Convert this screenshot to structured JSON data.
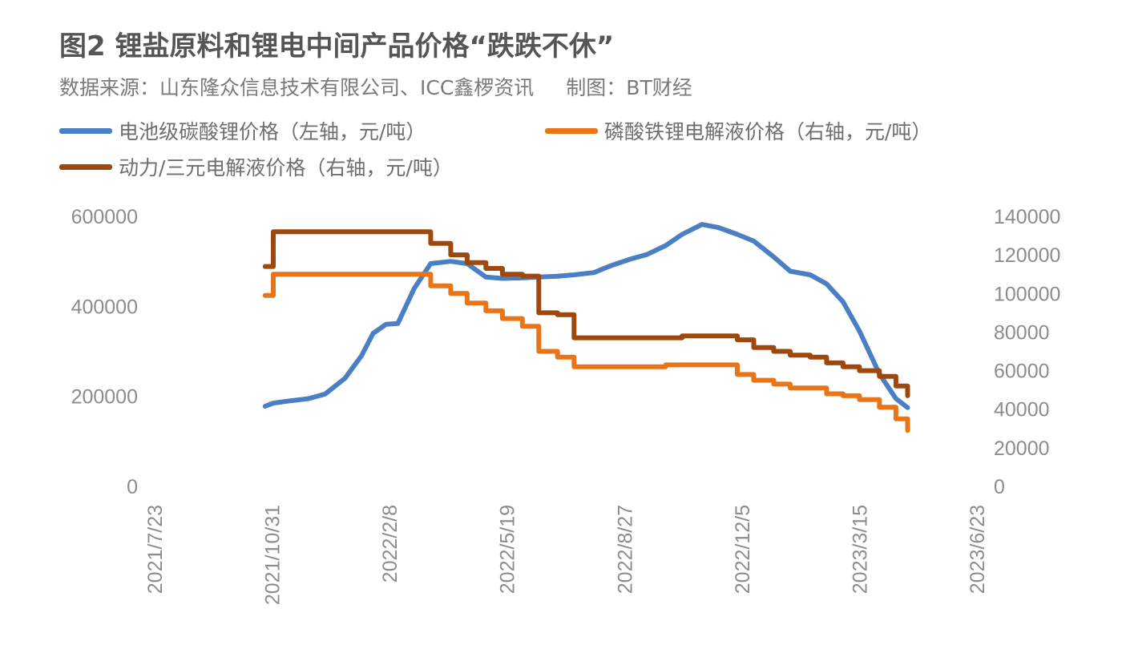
{
  "header": {
    "title": "图2 锂盐原料和锂电中间产品价格“跌跌不休”",
    "source": "数据来源：山东隆众信息技术有限公司、ICC鑫椤资讯",
    "maker": "制图：BT财经"
  },
  "legend": [
    {
      "label": "电池级碳酸锂价格（左轴，元/吨）",
      "color": "#4a7fc4"
    },
    {
      "label": "磷酸铁锂电解液价格（右轴，元/吨）",
      "color": "#e87619"
    },
    {
      "label": "动力/三元电解液价格（右轴，元/吨）",
      "color": "#9e480e"
    }
  ],
  "axes": {
    "left_ticks": [
      "600000",
      "400000",
      "200000",
      "0"
    ],
    "right_ticks": [
      "140000",
      "120000",
      "100000",
      "80000",
      "60000",
      "40000",
      "20000",
      "0"
    ],
    "x_ticks": [
      "2021/7/23",
      "2021/10/31",
      "2022/2/8",
      "2022/5/19",
      "2022/8/27",
      "2022/12/5",
      "2023/3/15",
      "2023/6/23"
    ]
  },
  "chart_data": {
    "type": "line",
    "title": "图2 锂盐原料和锂电中间产品价格“跌跌不休”",
    "subtitle": "数据来源：山东隆众信息技术有限公司、ICC鑫椤资讯  制图：BT财经",
    "xlabel": "",
    "ylabel_left": "元/吨",
    "ylabel_right": "元/吨",
    "ylim_left": [
      0,
      600000
    ],
    "ylim_right": [
      0,
      140000
    ],
    "x_tick_labels": [
      "2021/7/23",
      "2021/10/31",
      "2022/2/8",
      "2022/5/19",
      "2022/8/27",
      "2022/12/5",
      "2023/3/15",
      "2023/6/23"
    ],
    "grid": false,
    "legend_position": "top",
    "x": [
      "2021/10/25",
      "2021/11/1",
      "2021/11/15",
      "2021/12/1",
      "2021/12/15",
      "2022/1/1",
      "2022/1/15",
      "2022/1/25",
      "2022/2/5",
      "2022/2/15",
      "2022/3/1",
      "2022/3/15",
      "2022/4/1",
      "2022/4/15",
      "2022/5/1",
      "2022/5/15",
      "2022/6/1",
      "2022/6/15",
      "2022/7/1",
      "2022/7/15",
      "2022/8/1",
      "2022/8/15",
      "2022/9/1",
      "2022/9/15",
      "2022/10/1",
      "2022/10/15",
      "2022/11/1",
      "2022/11/15",
      "2022/12/1",
      "2022/12/15",
      "2023/1/1",
      "2023/1/15",
      "2023/2/1",
      "2023/2/15",
      "2023/3/1",
      "2023/3/15",
      "2023/4/1",
      "2023/4/15",
      "2023/4/25"
    ],
    "series": [
      {
        "name": "电池级碳酸锂价格（左轴，元/吨）",
        "axis": "left",
        "color": "#4a7fc4",
        "values": [
          178000,
          185000,
          190000,
          195000,
          205000,
          240000,
          290000,
          340000,
          360000,
          362000,
          440000,
          495000,
          500000,
          495000,
          465000,
          462000,
          463000,
          465000,
          467000,
          470000,
          475000,
          490000,
          505000,
          515000,
          535000,
          560000,
          582000,
          575000,
          560000,
          545000,
          510000,
          478000,
          470000,
          450000,
          410000,
          345000,
          250000,
          195000,
          175000
        ]
      },
      {
        "name": "磷酸铁锂电解液价格（右轴，元/吨）",
        "axis": "right",
        "color": "#e87619",
        "values": [
          99000,
          110000,
          110000,
          110000,
          110000,
          110000,
          110000,
          110000,
          110000,
          110000,
          110000,
          104000,
          100000,
          95000,
          91000,
          87000,
          83000,
          70000,
          67000,
          62000,
          62000,
          62000,
          62000,
          62000,
          63000,
          63000,
          63000,
          63000,
          58000,
          55000,
          53000,
          51000,
          51000,
          48000,
          47000,
          45000,
          41000,
          35000,
          29000
        ]
      },
      {
        "name": "动力/三元电解液价格（右轴，元/吨）",
        "axis": "right",
        "color": "#9e480e",
        "values": [
          114000,
          132000,
          132000,
          132000,
          132000,
          132000,
          132000,
          132000,
          132000,
          132000,
          132000,
          126000,
          120000,
          116000,
          113000,
          110000,
          109000,
          90000,
          89000,
          77000,
          77000,
          77000,
          77000,
          77000,
          77000,
          78000,
          78000,
          78000,
          76000,
          72000,
          70000,
          68000,
          67000,
          64000,
          62000,
          60000,
          57000,
          52000,
          47000
        ]
      }
    ]
  }
}
